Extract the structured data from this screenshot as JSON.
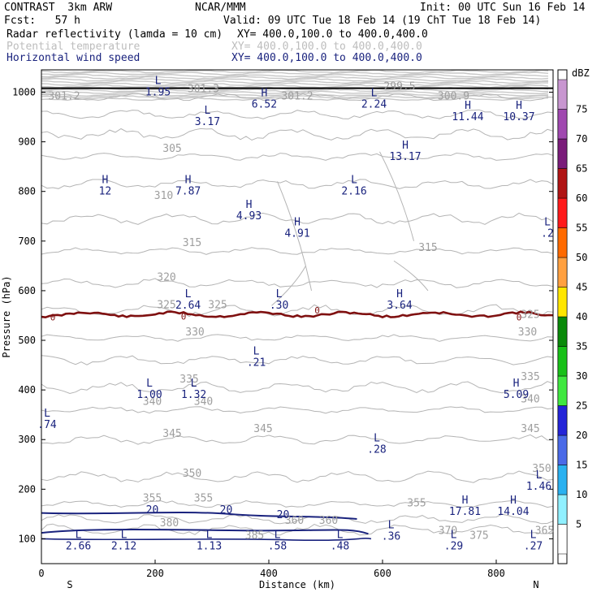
{
  "header": {
    "model": "CONTRAST  3km ARW",
    "org": "NCAR/MMM",
    "init": "Init: 00 UTC Sun 16 Feb 14",
    "fcst": "Fcst:   57 h",
    "valid": "Valid: 09 UTC Tue 18 Feb 14 (19 ChT Tue 18 Feb 14)",
    "fields": [
      {
        "name": "Radar reflectivity (lamda = 10 cm)",
        "xy": "XY= 400.0,100.0 to 400.0,400.0",
        "color": "#000000"
      },
      {
        "name": "Potential temperature",
        "xy": "XY= 400.0,100.0 to 400.0,400.0",
        "color": "#bdbdbd"
      },
      {
        "name": "Horizontal wind speed",
        "xy": "XY= 400.0,100.0 to 400.0,400.0",
        "color": "#1a237e"
      }
    ]
  },
  "chart_data": {
    "type": "contour cross-section",
    "xlabel": "Distance (km)",
    "ylabel": "Pressure (hPa)",
    "xlim": [
      0,
      900
    ],
    "ylim": [
      1045,
      50
    ],
    "x_ticks": [
      "0",
      "200",
      "400",
      "600",
      "800"
    ],
    "y_ticks": [
      "100",
      "200",
      "300",
      "400",
      "500",
      "600",
      "700",
      "800",
      "900",
      "1000"
    ],
    "endpoints": [
      "S",
      "N"
    ],
    "colorbar": {
      "unit": "dBZ",
      "levels": [
        "5",
        "10",
        "15",
        "20",
        "25",
        "30",
        "35",
        "40",
        "45",
        "50",
        "55",
        "60",
        "65",
        "70",
        "75"
      ],
      "colors": [
        "#ffffff",
        "#90f0ff",
        "#2ab1f0",
        "#4a6ae8",
        "#2424d8",
        "#40e840",
        "#18c018",
        "#0a8a0a",
        "#ffe600",
        "#ffa040",
        "#ff6a00",
        "#ff1a1a",
        "#b01414",
        "#7a1c7a",
        "#a048b0",
        "#c896d0"
      ]
    },
    "theta_labels": [
      {
        "t": "301.2",
        "x": 40,
        "p": 985
      },
      {
        "t": "301.3",
        "x": 285,
        "p": 1000
      },
      {
        "t": "301.2",
        "x": 450,
        "p": 985
      },
      {
        "t": "300.9",
        "x": 725,
        "p": 985
      },
      {
        "t": "299.5",
        "x": 630,
        "p": 1005
      },
      {
        "t": "305",
        "x": 230,
        "p": 880
      },
      {
        "t": "310",
        "x": 215,
        "p": 785
      },
      {
        "t": "315",
        "x": 265,
        "p": 690
      },
      {
        "t": "315",
        "x": 680,
        "p": 680
      },
      {
        "t": "320",
        "x": 220,
        "p": 620
      },
      {
        "t": "325",
        "x": 220,
        "p": 565
      },
      {
        "t": "325",
        "x": 310,
        "p": 565
      },
      {
        "t": "325",
        "x": 860,
        "p": 545
      },
      {
        "t": "330",
        "x": 270,
        "p": 510
      },
      {
        "t": "330",
        "x": 855,
        "p": 510
      },
      {
        "t": "335",
        "x": 260,
        "p": 415
      },
      {
        "t": "335",
        "x": 860,
        "p": 420
      },
      {
        "t": "340",
        "x": 195,
        "p": 370
      },
      {
        "t": "340",
        "x": 285,
        "p": 370
      },
      {
        "t": "340",
        "x": 860,
        "p": 375
      },
      {
        "t": "345",
        "x": 230,
        "p": 305
      },
      {
        "t": "345",
        "x": 390,
        "p": 315
      },
      {
        "t": "345",
        "x": 860,
        "p": 315
      },
      {
        "t": "350",
        "x": 265,
        "p": 225
      },
      {
        "t": "350",
        "x": 880,
        "p": 235
      },
      {
        "t": "355",
        "x": 195,
        "p": 175
      },
      {
        "t": "355",
        "x": 285,
        "p": 175
      },
      {
        "t": "355",
        "x": 660,
        "p": 165
      },
      {
        "t": "360",
        "x": 445,
        "p": 130
      },
      {
        "t": "360",
        "x": 505,
        "p": 130
      },
      {
        "t": "370",
        "x": 715,
        "p": 110
      },
      {
        "t": "375",
        "x": 770,
        "p": 100
      },
      {
        "t": "365",
        "x": 885,
        "p": 110
      },
      {
        "t": "380",
        "x": 225,
        "p": 125
      },
      {
        "t": "385",
        "x": 375,
        "p": 100
      }
    ],
    "wind_contour_labels": [
      {
        "t": "20",
        "x": 195,
        "p": 160
      },
      {
        "t": "20",
        "x": 325,
        "p": 160
      },
      {
        "t": "20",
        "x": 425,
        "p": 150
      }
    ],
    "freezing_level_labels": [
      {
        "t": "0",
        "x": 20,
        "p": 548
      },
      {
        "t": "0",
        "x": 250,
        "p": 550
      },
      {
        "t": "0",
        "x": 485,
        "p": 562
      },
      {
        "t": "0",
        "x": 840,
        "p": 548
      }
    ],
    "extrema": [
      {
        "k": "L",
        "v": "2.66",
        "x": 65,
        "p": 90
      },
      {
        "k": "L",
        "v": "2.12",
        "x": 145,
        "p": 90
      },
      {
        "k": "L",
        "v": "1.13",
        "x": 295,
        "p": 90
      },
      {
        "k": "L",
        "v": ".58",
        "x": 415,
        "p": 90
      },
      {
        "k": "L",
        "v": ".48",
        "x": 525,
        "p": 90
      },
      {
        "k": "L",
        "v": ".36",
        "x": 615,
        "p": 110
      },
      {
        "k": "L",
        "v": ".29",
        "x": 725,
        "p": 90
      },
      {
        "k": "L",
        "v": ".27",
        "x": 865,
        "p": 90
      },
      {
        "k": "H",
        "v": "17.81",
        "x": 745,
        "p": 160
      },
      {
        "k": "H",
        "v": "14.04",
        "x": 830,
        "p": 160
      },
      {
        "k": "L",
        "v": "1.46",
        "x": 875,
        "p": 210
      },
      {
        "k": "L",
        "v": ".28",
        "x": 590,
        "p": 285
      },
      {
        "k": "L",
        "v": ".74",
        "x": 10,
        "p": 335
      },
      {
        "k": "L",
        "v": "1.00",
        "x": 190,
        "p": 395
      },
      {
        "k": "L",
        "v": "1.32",
        "x": 268,
        "p": 395
      },
      {
        "k": "H",
        "v": "5.09",
        "x": 835,
        "p": 395
      },
      {
        "k": "L",
        "v": ".21",
        "x": 378,
        "p": 460
      },
      {
        "k": "L",
        "v": "2.64",
        "x": 258,
        "p": 575
      },
      {
        "k": "L",
        "v": ".30",
        "x": 418,
        "p": 575
      },
      {
        "k": "H",
        "v": "3.64",
        "x": 630,
        "p": 575
      },
      {
        "k": "H",
        "v": "4.91",
        "x": 450,
        "p": 720
      },
      {
        "k": "L",
        "v": ".2",
        "x": 890,
        "p": 720
      },
      {
        "k": "H",
        "v": "4.93",
        "x": 365,
        "p": 755
      },
      {
        "k": "H",
        "v": "12",
        "x": 112,
        "p": 805
      },
      {
        "k": "H",
        "v": "7.87",
        "x": 258,
        "p": 805
      },
      {
        "k": "L",
        "v": "2.16",
        "x": 550,
        "p": 805
      },
      {
        "k": "H",
        "v": "13.17",
        "x": 640,
        "p": 875
      },
      {
        "k": "L",
        "v": "3.17",
        "x": 292,
        "p": 945
      },
      {
        "k": "H",
        "v": "11.44",
        "x": 750,
        "p": 955
      },
      {
        "k": "H",
        "v": "10.37",
        "x": 840,
        "p": 955
      },
      {
        "k": "H",
        "v": "6.52",
        "x": 392,
        "p": 980
      },
      {
        "k": "L",
        "v": "2.24",
        "x": 585,
        "p": 980
      },
      {
        "k": "L",
        "v": "1.95",
        "x": 205,
        "p": 1005
      }
    ]
  }
}
